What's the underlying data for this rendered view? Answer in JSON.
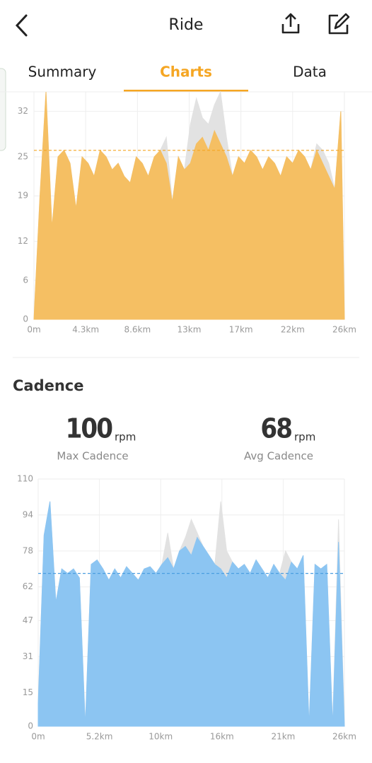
{
  "header": {
    "title": "Ride"
  },
  "tabs": {
    "items": [
      "Summary",
      "Charts",
      "Data"
    ],
    "active": 1
  },
  "cadence": {
    "title": "Cadence",
    "stats": [
      {
        "value": 100,
        "unit": "rpm",
        "label": "Max Cadence"
      },
      {
        "value": 68,
        "unit": "rpm",
        "label": "Avg Cadence"
      }
    ]
  },
  "chart_data": [
    {
      "type": "area",
      "x": [
        0,
        0.5,
        1,
        1.5,
        2,
        2.5,
        3,
        3.5,
        4,
        4.5,
        5,
        5.5,
        6,
        6.5,
        7,
        7.5,
        8,
        8.5,
        9,
        9.5,
        10,
        10.5,
        11,
        11.5,
        12,
        12.5,
        13,
        13.5,
        14,
        14.5,
        15,
        15.5,
        16,
        16.5,
        17,
        17.5,
        18,
        18.5,
        19,
        19.5,
        20,
        20.5,
        21,
        21.5,
        22,
        22.5,
        23,
        23.5,
        24,
        24.5,
        25,
        25.5,
        25.8
      ],
      "series": [
        {
          "color": "#e2e2e2",
          "values": [
            0,
            19,
            35,
            14,
            25,
            26,
            24,
            17,
            25,
            24,
            22,
            26,
            25,
            23,
            24,
            22,
            21,
            25,
            24,
            22,
            25,
            26,
            28,
            18,
            25,
            23,
            30,
            34,
            31,
            30,
            33,
            35,
            28,
            22,
            25,
            24,
            26,
            25,
            23,
            25,
            24,
            22,
            25,
            24,
            26,
            25,
            23,
            27,
            26,
            24,
            20,
            32,
            0
          ]
        },
        {
          "color": "#f5bf63",
          "values": [
            0,
            19,
            35,
            14,
            25,
            26,
            24,
            17,
            25,
            24,
            22,
            26,
            25,
            23,
            24,
            22,
            21,
            25,
            24,
            22,
            25,
            26,
            24,
            18,
            25,
            23,
            24,
            27,
            28,
            26,
            29,
            27,
            25,
            22,
            25,
            24,
            26,
            25,
            23,
            25,
            24,
            22,
            25,
            24,
            26,
            25,
            23,
            26,
            24,
            22,
            20,
            32,
            0
          ]
        }
      ],
      "avg_line": 26,
      "avg_color": "#f5a623",
      "xlim": [
        0,
        25.8
      ],
      "xticks": [
        {
          "value": 0,
          "label": "0m"
        },
        {
          "value": 4.3,
          "label": "4.3km"
        },
        {
          "value": 8.6,
          "label": "8.6km"
        },
        {
          "value": 12.9,
          "label": "13km"
        },
        {
          "value": 17.2,
          "label": "17km"
        },
        {
          "value": 21.5,
          "label": "22km"
        },
        {
          "value": 25.8,
          "label": "26km"
        }
      ],
      "ylim": [
        0,
        35
      ],
      "yticks": [
        0,
        6,
        12,
        19,
        25,
        32
      ],
      "grid": true
    },
    {
      "type": "area",
      "x": [
        0,
        0.5,
        1,
        1.5,
        2,
        2.5,
        3,
        3.5,
        4,
        4.5,
        5,
        5.5,
        6,
        6.5,
        7,
        7.5,
        8,
        8.5,
        9,
        9.5,
        10,
        10.5,
        11,
        11.5,
        12,
        12.5,
        13,
        13.5,
        14,
        14.5,
        15,
        15.5,
        16,
        16.5,
        17,
        17.5,
        18,
        18.5,
        19,
        19.5,
        20,
        20.5,
        21,
        21.5,
        22,
        22.5,
        23,
        23.5,
        24,
        24.5,
        25,
        25.5,
        26
      ],
      "series": [
        {
          "color": "#e2e2e2",
          "values": [
            10,
            85,
            100,
            55,
            70,
            68,
            70,
            66,
            0,
            72,
            74,
            70,
            65,
            70,
            66,
            71,
            68,
            65,
            70,
            71,
            68,
            72,
            86,
            70,
            78,
            84,
            92,
            86,
            80,
            76,
            72,
            100,
            78,
            73,
            70,
            72,
            68,
            74,
            70,
            66,
            72,
            68,
            78,
            73,
            70,
            76,
            0,
            72,
            70,
            72,
            0,
            92,
            0
          ]
        },
        {
          "color": "#8cc5f2",
          "values": [
            10,
            85,
            100,
            55,
            70,
            68,
            70,
            66,
            0,
            72,
            74,
            70,
            65,
            70,
            66,
            71,
            68,
            65,
            70,
            71,
            68,
            72,
            75,
            70,
            78,
            80,
            76,
            84,
            80,
            76,
            72,
            70,
            66,
            73,
            70,
            72,
            68,
            74,
            70,
            66,
            72,
            68,
            65,
            73,
            70,
            76,
            0,
            72,
            70,
            72,
            0,
            82,
            0
          ]
        }
      ],
      "avg_line": 68,
      "avg_color": "#4a9ee0",
      "xlim": [
        0,
        26
      ],
      "xticks": [
        {
          "value": 0,
          "label": "0m"
        },
        {
          "value": 5.2,
          "label": "5.2km"
        },
        {
          "value": 10.4,
          "label": "10km"
        },
        {
          "value": 15.6,
          "label": "16km"
        },
        {
          "value": 20.8,
          "label": "21km"
        },
        {
          "value": 26,
          "label": "26km"
        }
      ],
      "ylim": [
        0,
        110
      ],
      "yticks": [
        0,
        15,
        31,
        47,
        62,
        78,
        94,
        110
      ],
      "grid": true
    }
  ]
}
